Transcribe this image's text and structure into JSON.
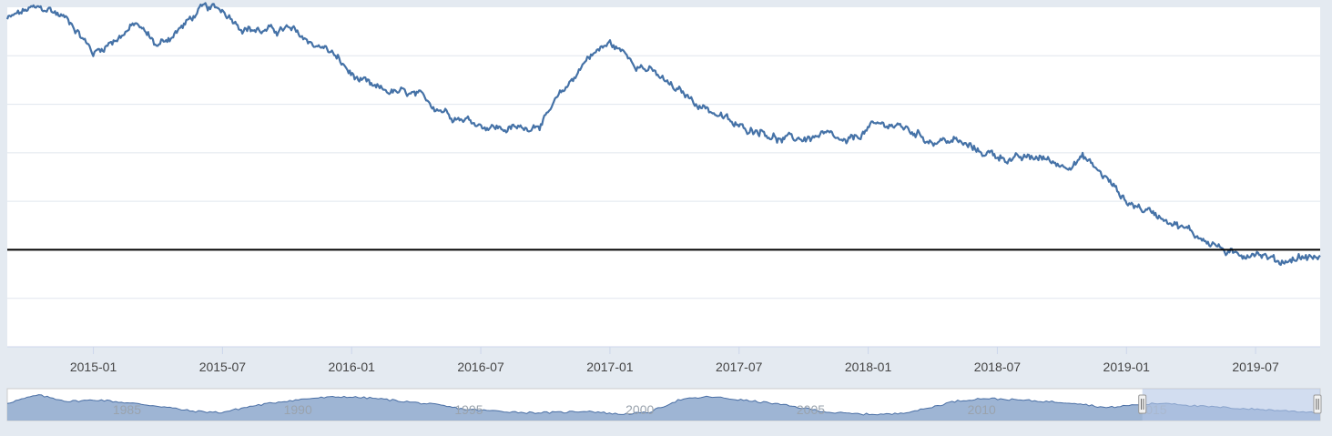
{
  "colors": {
    "background": "#e4eaf1",
    "plot_background": "#ffffff",
    "gridline": "#e0e6ee",
    "series_line": "#4572a7",
    "reference_line": "#000000",
    "navigator_fill": "#8da8cc",
    "navigator_line": "#4a6fa5",
    "navigator_mask": "#b4c6e6"
  },
  "chart_data": {
    "type": "line",
    "grid": true,
    "legend": "none",
    "x_tick_labels": [
      "2015-01",
      "2015-07",
      "2016-01",
      "2016-07",
      "2017-01",
      "2017-07",
      "2018-01",
      "2018-07",
      "2019-01",
      "2019-07"
    ],
    "x_range": [
      "2014-09",
      "2019-10"
    ],
    "y_range": [
      0,
      7
    ],
    "y_gridlines": [
      1,
      2,
      3,
      4,
      5,
      6
    ],
    "y_tick_labels": [],
    "reference_line_y": 2,
    "series": [
      {
        "values_x": [
          "2014-09",
          "2014-10",
          "2014-11",
          "2014-12",
          "2015-01",
          "2015-02",
          "2015-03",
          "2015-04",
          "2015-05",
          "2015-06",
          "2015-07",
          "2015-08",
          "2015-09",
          "2015-10",
          "2015-11",
          "2015-12",
          "2016-01",
          "2016-02",
          "2016-03",
          "2016-04",
          "2016-05",
          "2016-06",
          "2016-07",
          "2016-08",
          "2016-09",
          "2016-10",
          "2016-11",
          "2016-12",
          "2017-01",
          "2017-02",
          "2017-03",
          "2017-04",
          "2017-05",
          "2017-06",
          "2017-07",
          "2017-08",
          "2017-09",
          "2017-10",
          "2017-11",
          "2017-12",
          "2018-01",
          "2018-02",
          "2018-03",
          "2018-04",
          "2018-05",
          "2018-06",
          "2018-07",
          "2018-08",
          "2018-09",
          "2018-10",
          "2018-11",
          "2018-12",
          "2019-01",
          "2019-02",
          "2019-03",
          "2019-04",
          "2019-05",
          "2019-06",
          "2019-07",
          "2019-08",
          "2019-09",
          "2019-10"
        ],
        "values_y": [
          6.75,
          6.95,
          6.95,
          6.7,
          6.05,
          6.35,
          6.65,
          6.2,
          6.55,
          6.95,
          6.95,
          6.6,
          6.5,
          6.55,
          6.3,
          6.1,
          5.6,
          5.3,
          5.25,
          5.15,
          4.95,
          4.75,
          4.6,
          4.5,
          4.5,
          4.7,
          5.35,
          6.0,
          6.25,
          5.95,
          5.65,
          5.3,
          5.05,
          4.8,
          4.5,
          4.5,
          4.25,
          4.3,
          4.35,
          4.15,
          4.5,
          4.6,
          4.45,
          4.25,
          4.25,
          4.05,
          3.95,
          3.85,
          3.9,
          3.75,
          3.9,
          3.5,
          3.0,
          2.8,
          2.65,
          2.35,
          2.15,
          1.85,
          2.0,
          1.75,
          1.85,
          1.85
        ]
      }
    ],
    "navigator": {
      "x_tick_labels": [
        "1985",
        "1990",
        "1995",
        "2000",
        "2005",
        "2010",
        "2015"
      ],
      "x_range": [
        1981.5,
        2019.9
      ],
      "selected_range": [
        2014.7,
        2019.9
      ],
      "relative_levels": [
        0.55,
        0.8,
        0.6,
        0.65,
        0.55,
        0.45,
        0.3,
        0.25,
        0.45,
        0.6,
        0.7,
        0.75,
        0.7,
        0.6,
        0.5,
        0.35,
        0.3,
        0.25,
        0.25,
        0.3,
        0.2,
        0.25,
        0.65,
        0.75,
        0.65,
        0.55,
        0.4,
        0.25,
        0.2,
        0.2,
        0.35,
        0.6,
        0.7,
        0.65,
        0.6,
        0.55,
        0.4,
        0.5,
        0.55,
        0.45,
        0.4,
        0.35,
        0.3,
        0.25
      ]
    }
  }
}
